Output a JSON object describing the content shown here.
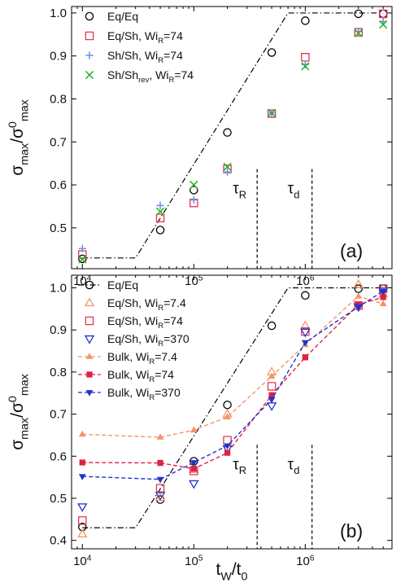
{
  "chart_data": [
    {
      "type": "scatter",
      "panel_label": "(a)",
      "xlabel": "t_W/t_0",
      "ylabel": "σ_max/σ^0_max",
      "x_scale": "log",
      "xlim": [
        8000,
        6000000
      ],
      "ylim": [
        0.405,
        1.015
      ],
      "x_ticks": [
        10000,
        100000,
        1000000
      ],
      "x_tick_labels": [
        "10^4",
        "10^5",
        "10^6"
      ],
      "y_ticks": [
        0.4,
        0.5,
        0.6,
        0.7,
        0.8,
        0.9,
        1.0
      ],
      "y_tick_labels": [
        "0.4",
        "0.5",
        "0.6",
        "0.7",
        "0.8",
        "0.9",
        "1.0"
      ],
      "legend_position": "top-left",
      "annotations": [
        {
          "text": "τ_R",
          "x": 370000,
          "kind": "vertical-dashed-line"
        },
        {
          "text": "τ_d",
          "x": 1150000,
          "kind": "vertical-dashed-line"
        }
      ],
      "guide_line": {
        "style": "dash-dot",
        "x": [
          10000,
          30000,
          700000,
          5000000
        ],
        "y": [
          0.43,
          0.43,
          1.0,
          1.0
        ]
      },
      "series": [
        {
          "name": "Eq/Eq",
          "marker": "circle",
          "color": "#000000",
          "x": [
            10000,
            50000,
            100000,
            200000,
            500000,
            1000000,
            3000000,
            5000000
          ],
          "y": [
            0.428,
            0.495,
            0.588,
            0.722,
            0.908,
            0.982,
            0.998,
            0.998
          ]
        },
        {
          "name": "Eq/Sh, Wi_R=74",
          "marker": "square",
          "color": "#e8344f",
          "x": [
            10000,
            50000,
            100000,
            200000,
            500000,
            1000000,
            3000000,
            5000000
          ],
          "y": [
            0.438,
            0.523,
            0.558,
            0.637,
            0.766,
            0.897,
            0.955,
            0.998
          ]
        },
        {
          "name": "Sh/Sh, Wi_R=74",
          "marker": "plus",
          "color": "#6b8ee8",
          "x": [
            10000,
            50000,
            100000,
            200000,
            500000,
            1000000,
            3000000,
            5000000
          ],
          "y": [
            0.452,
            0.552,
            0.565,
            0.63,
            0.767,
            0.88,
            0.957,
            0.98
          ]
        },
        {
          "name": "Sh/Sh_rev, Wi_R=74",
          "marker": "x",
          "color": "#22b022",
          "x": [
            10000,
            50000,
            100000,
            200000,
            500000,
            1000000,
            3000000,
            5000000
          ],
          "y": [
            0.427,
            0.538,
            0.6,
            0.642,
            0.767,
            0.876,
            0.953,
            0.973
          ]
        }
      ]
    },
    {
      "type": "line",
      "panel_label": "(b)",
      "xlabel": "t_W/t_0",
      "ylabel": "σ_max/σ^0_max",
      "x_scale": "log",
      "xlim": [
        8000,
        6000000
      ],
      "ylim": [
        0.38,
        1.03
      ],
      "x_ticks": [
        10000,
        100000,
        1000000
      ],
      "x_tick_labels": [
        "10^4",
        "10^5",
        "10^6"
      ],
      "y_ticks": [
        0.4,
        0.5,
        0.6,
        0.7,
        0.8,
        0.9,
        1.0
      ],
      "y_tick_labels": [
        "0.4",
        "0.5",
        "0.6",
        "0.7",
        "0.8",
        "0.9",
        "1.0"
      ],
      "legend_position": "top-left",
      "annotations": [
        {
          "text": "τ_R",
          "x": 370000,
          "kind": "vertical-dashed-line"
        },
        {
          "text": "τ_d",
          "x": 1150000,
          "kind": "vertical-dashed-line"
        }
      ],
      "series": [
        {
          "name": "Eq/Eq",
          "marker": "circle",
          "color": "#000000",
          "line": "dash-dot",
          "line_x": [
            10000,
            30000,
            700000,
            5000000
          ],
          "line_y": [
            0.43,
            0.43,
            1.0,
            1.0
          ],
          "x": [
            10000,
            50000,
            100000,
            200000,
            500000,
            1000000,
            3000000,
            5000000
          ],
          "y": [
            0.432,
            0.497,
            0.588,
            0.722,
            0.91,
            0.982,
            0.998,
            0.998
          ]
        },
        {
          "name": "Eq/Sh, Wi_R=7.4",
          "marker": "triangle-up",
          "color": "#f4956a",
          "x": [
            10000,
            50000,
            100000,
            200000,
            500000,
            1000000,
            3000000,
            5000000
          ],
          "y": [
            0.415,
            0.502,
            0.568,
            0.7,
            0.8,
            0.91,
            1.008,
            0.985
          ]
        },
        {
          "name": "Eq/Sh, Wi_R=74",
          "marker": "square",
          "color": "#e8344f",
          "x": [
            10000,
            50000,
            100000,
            200000,
            500000,
            1000000,
            3000000,
            5000000
          ],
          "y": [
            0.447,
            0.524,
            0.565,
            0.638,
            0.766,
            0.896,
            0.958,
            0.998
          ]
        },
        {
          "name": "Eq/Sh, Wi_R=370",
          "marker": "triangle-down",
          "color": "#2233cc",
          "x": [
            10000,
            50000,
            100000,
            200000,
            500000,
            1000000,
            3000000,
            5000000
          ],
          "y": [
            0.48,
            0.507,
            0.535,
            0.618,
            0.72,
            0.895,
            0.955,
            0.993
          ]
        },
        {
          "name": "Bulk, Wi_R=7.4",
          "marker": "small-triangle",
          "color": "#f4956a",
          "line": "dashed",
          "x": [
            10000,
            50000,
            100000,
            200000,
            500000,
            1000000,
            3000000,
            5000000
          ],
          "y": [
            0.652,
            0.645,
            0.662,
            0.693,
            0.79,
            0.865,
            0.98,
            0.962
          ]
        },
        {
          "name": "Bulk, Wi_R=74",
          "marker": "small-square",
          "color": "#dd2244",
          "line": "dashed",
          "x": [
            10000,
            50000,
            100000,
            200000,
            500000,
            1000000,
            3000000,
            5000000
          ],
          "y": [
            0.585,
            0.584,
            0.57,
            0.608,
            0.745,
            0.835,
            0.96,
            0.978
          ]
        },
        {
          "name": "Bulk, Wi_R=370",
          "marker": "small-triangle-down",
          "color": "#2233cc",
          "line": "dashed",
          "x": [
            10000,
            50000,
            100000,
            200000,
            500000,
            1000000,
            3000000,
            5000000
          ],
          "y": [
            0.552,
            0.545,
            0.585,
            0.625,
            0.735,
            0.87,
            0.955,
            0.992
          ]
        }
      ]
    }
  ]
}
